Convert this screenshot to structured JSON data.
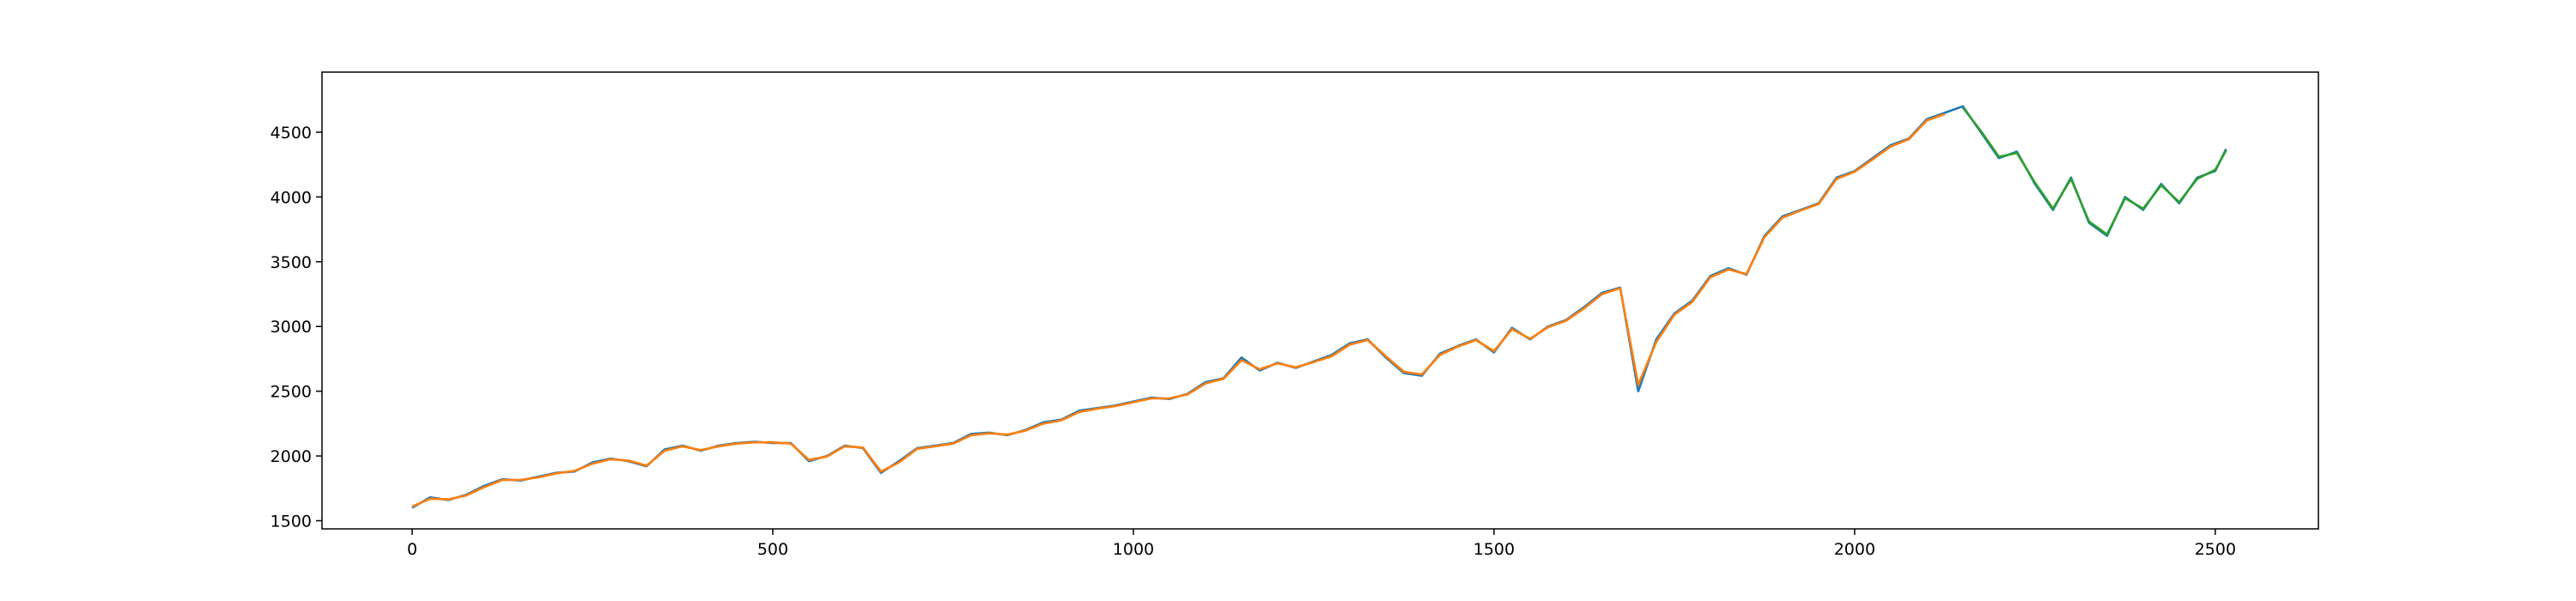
{
  "chart_data": {
    "type": "line",
    "x": [
      0,
      25,
      50,
      75,
      100,
      125,
      150,
      175,
      200,
      225,
      250,
      275,
      300,
      325,
      350,
      375,
      400,
      425,
      450,
      475,
      500,
      525,
      550,
      575,
      600,
      625,
      650,
      675,
      700,
      725,
      750,
      775,
      800,
      825,
      850,
      875,
      900,
      925,
      950,
      975,
      1000,
      1025,
      1050,
      1075,
      1100,
      1125,
      1150,
      1175,
      1200,
      1225,
      1250,
      1275,
      1300,
      1325,
      1350,
      1375,
      1400,
      1425,
      1450,
      1475,
      1500,
      1525,
      1550,
      1575,
      1600,
      1625,
      1650,
      1675,
      1700,
      1725,
      1750,
      1775,
      1800,
      1825,
      1850,
      1875,
      1900,
      1925,
      1950,
      1975,
      2000,
      2025,
      2050,
      2075,
      2100,
      2125,
      2150,
      2175,
      2200,
      2225,
      2250,
      2275,
      2300,
      2325,
      2350,
      2375,
      2400,
      2425,
      2450,
      2475,
      2500,
      2515
    ],
    "series": [
      {
        "color": "#1f77b4",
        "values": [
          1600,
          1680,
          1660,
          1700,
          1770,
          1820,
          1810,
          1840,
          1870,
          1880,
          1950,
          1980,
          1960,
          1920,
          2050,
          2080,
          2040,
          2080,
          2100,
          2110,
          2100,
          2100,
          1960,
          2000,
          2080,
          2060,
          1870,
          1960,
          2060,
          2080,
          2100,
          2170,
          2180,
          2160,
          2200,
          2260,
          2280,
          2350,
          2370,
          2390,
          2420,
          2450,
          2440,
          2480,
          2570,
          2600,
          2760,
          2660,
          2720,
          2680,
          2730,
          2780,
          2870,
          2900,
          2760,
          2640,
          2620,
          2790,
          2850,
          2900,
          2800,
          2990,
          2900,
          3000,
          3050,
          3150,
          3260,
          3300,
          2500,
          2900,
          3100,
          3200,
          3390,
          3450,
          3400,
          3700,
          3850,
          3900,
          3950,
          4150,
          4200,
          4300,
          4400,
          4450,
          4600,
          4650,
          4700,
          4500,
          4300,
          4350,
          4100,
          3900,
          4150,
          3800,
          3700,
          4000,
          3900,
          4100,
          3950,
          4150,
          4200,
          4370
        ]
      },
      {
        "color": "#ff7f0e",
        "values": [
          1610,
          1670,
          1665,
          1695,
          1760,
          1815,
          1815,
          1835,
          1865,
          1885,
          1940,
          1975,
          1965,
          1925,
          2040,
          2075,
          2045,
          2075,
          2095,
          2105,
          2105,
          2095,
          1970,
          1995,
          2075,
          2065,
          1880,
          1950,
          2055,
          2075,
          2095,
          2160,
          2175,
          2165,
          2195,
          2250,
          2275,
          2340,
          2365,
          2385,
          2415,
          2445,
          2445,
          2475,
          2560,
          2595,
          2740,
          2670,
          2715,
          2685,
          2725,
          2770,
          2860,
          2895,
          2770,
          2650,
          2630,
          2780,
          2845,
          2895,
          2810,
          2980,
          2905,
          2995,
          3045,
          3140,
          3250,
          3295,
          2550,
          2880,
          3090,
          3190,
          3380,
          3440,
          3405,
          3690,
          3840,
          3895,
          3945,
          4140,
          4195,
          4290,
          4390,
          4445,
          4590,
          4640,
          null,
          null,
          null,
          null,
          null,
          null,
          null,
          null,
          null,
          null,
          null,
          null,
          null,
          null,
          null,
          null
        ]
      },
      {
        "color": "#2ca02c",
        "values": [
          null,
          null,
          null,
          null,
          null,
          null,
          null,
          null,
          null,
          null,
          null,
          null,
          null,
          null,
          null,
          null,
          null,
          null,
          null,
          null,
          null,
          null,
          null,
          null,
          null,
          null,
          null,
          null,
          null,
          null,
          null,
          null,
          null,
          null,
          null,
          null,
          null,
          null,
          null,
          null,
          null,
          null,
          null,
          null,
          null,
          null,
          null,
          null,
          null,
          null,
          null,
          null,
          null,
          null,
          null,
          null,
          null,
          null,
          null,
          null,
          null,
          null,
          null,
          null,
          null,
          null,
          null,
          null,
          null,
          null,
          null,
          null,
          null,
          null,
          null,
          null,
          null,
          null,
          null,
          null,
          null,
          null,
          null,
          null,
          null,
          null,
          4690,
          4510,
          4310,
          4340,
          4110,
          3910,
          4140,
          3810,
          3710,
          3990,
          3910,
          4090,
          3960,
          4140,
          4210,
          4360
        ]
      }
    ],
    "xlim": [
      -125,
      2643
    ],
    "ylim": [
      1437,
      4964
    ],
    "xticks": [
      0,
      500,
      1000,
      1500,
      2000,
      2500
    ],
    "yticks": [
      1500,
      2000,
      2500,
      3000,
      3500,
      4000,
      4500
    ]
  }
}
